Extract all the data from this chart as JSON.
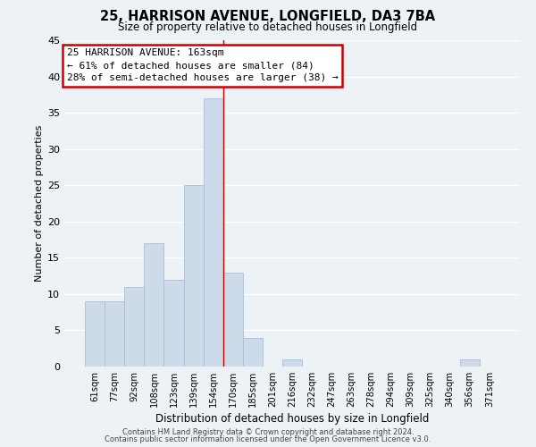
{
  "title": "25, HARRISON AVENUE, LONGFIELD, DA3 7BA",
  "subtitle": "Size of property relative to detached houses in Longfield",
  "xlabel": "Distribution of detached houses by size in Longfield",
  "ylabel": "Number of detached properties",
  "bar_labels": [
    "61sqm",
    "77sqm",
    "92sqm",
    "108sqm",
    "123sqm",
    "139sqm",
    "154sqm",
    "170sqm",
    "185sqm",
    "201sqm",
    "216sqm",
    "232sqm",
    "247sqm",
    "263sqm",
    "278sqm",
    "294sqm",
    "309sqm",
    "325sqm",
    "340sqm",
    "356sqm",
    "371sqm"
  ],
  "bar_values": [
    9,
    9,
    11,
    17,
    12,
    25,
    37,
    13,
    4,
    0,
    1,
    0,
    0,
    0,
    0,
    0,
    0,
    0,
    0,
    1,
    0
  ],
  "bar_color": "#ccdaea",
  "bar_edge_color": "#aabfd4",
  "ylim": [
    0,
    45
  ],
  "yticks": [
    0,
    5,
    10,
    15,
    20,
    25,
    30,
    35,
    40,
    45
  ],
  "vline_x": 6.5,
  "annotation_title": "25 HARRISON AVENUE: 163sqm",
  "annotation_line1": "← 61% of detached houses are smaller (84)",
  "annotation_line2": "28% of semi-detached houses are larger (38) →",
  "annotation_box_color": "#ffffff",
  "annotation_box_edge_color": "#cc0000",
  "vline_color": "#cc0000",
  "background_color": "#edf2f7",
  "grid_color": "#ffffff",
  "footer_line1": "Contains HM Land Registry data © Crown copyright and database right 2024.",
  "footer_line2": "Contains public sector information licensed under the Open Government Licence v3.0."
}
